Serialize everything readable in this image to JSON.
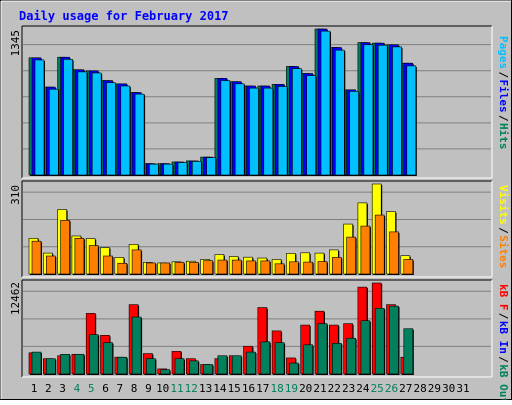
{
  "chart_data": {
    "type": "bar",
    "title": "Daily usage for February 2017",
    "categories": [
      "1",
      "2",
      "3",
      "4",
      "5",
      "6",
      "7",
      "8",
      "9",
      "10",
      "11",
      "12",
      "13",
      "14",
      "15",
      "16",
      "17",
      "18",
      "19",
      "20",
      "21",
      "22",
      "23",
      "24",
      "25",
      "26",
      "27",
      "28",
      "29",
      "30",
      "31"
    ],
    "weekend_days": [
      4,
      5,
      11,
      12,
      18,
      19,
      25,
      26
    ],
    "colors": {
      "background": "#c0c0c0",
      "frame": "#ffffff",
      "gridline": "#808080",
      "title": "#0000ff",
      "weekday": "#000000",
      "weekend": "#00805c",
      "hits": "#00805c",
      "files": "#0000ff",
      "pages": "#00c0ff",
      "visits": "#ffff00",
      "sites": "#ff8000",
      "kb_f": "#ff0000",
      "kb_in": "#0000ff",
      "kb_out": "#00805c"
    },
    "panels": [
      {
        "id": "hits",
        "ymax_label": "1345",
        "ylim": [
          0,
          1345
        ],
        "legend": [
          {
            "text": "Pages",
            "color": "#00c0ff"
          },
          {
            "text": "Files",
            "color": "#0000ff"
          },
          {
            "text": "Hits",
            "color": "#00805c"
          }
        ],
        "series": [
          {
            "name": "Hits",
            "color": "#00805c",
            "values": [
              1080,
              810,
              1085,
              970,
              960,
              870,
              840,
              760,
              105,
              105,
              120,
              130,
              165,
              890,
              860,
              820,
              820,
              835,
              1000,
              935,
              1345,
              1175,
              785,
              1220,
              1215,
              1200,
              1030,
              null,
              null,
              null,
              null
            ]
          },
          {
            "name": "Files",
            "color": "#0000ff",
            "values": [
              1080,
              810,
              1085,
              970,
              960,
              870,
              840,
              760,
              105,
              105,
              120,
              130,
              165,
              890,
              860,
              820,
              820,
              835,
              1000,
              935,
              1345,
              1175,
              785,
              1220,
              1215,
              1200,
              1030,
              null,
              null,
              null,
              null
            ]
          },
          {
            "name": "Pages",
            "color": "#00c0ff",
            "values": [
              1060,
              790,
              1065,
              950,
              940,
              850,
              820,
              745,
              100,
              100,
              115,
              125,
              160,
              870,
              840,
              800,
              800,
              815,
              980,
              915,
              1325,
              1150,
              770,
              1200,
              1195,
              1180,
              1005,
              null,
              null,
              null,
              null
            ]
          }
        ]
      },
      {
        "id": "visits",
        "ymax_label": "310",
        "ylim": [
          0,
          310
        ],
        "legend": [
          {
            "text": "Visits",
            "color": "#ffff00"
          },
          {
            "text": "Sites",
            "color": "#ff8000"
          }
        ],
        "series": [
          {
            "name": "Visits",
            "color": "#ffff00",
            "values": [
              123,
              72,
              222,
              131,
              122,
              91,
              57,
              102,
              40,
              38,
              42,
              44,
              50,
              67,
              60,
              58,
              55,
              50,
              71,
              73,
              72,
              83,
              172,
              245,
              310,
              215,
              63,
              null,
              null,
              null,
              null
            ]
          },
          {
            "name": "Sites",
            "color": "#ff8000",
            "values": [
              113,
              62,
              185,
              123,
              98,
              62,
              37,
              83,
              38,
              38,
              40,
              40,
              46,
              48,
              48,
              45,
              45,
              35,
              42,
              41,
              43,
              57,
              127,
              165,
              203,
              145,
              50,
              null,
              null,
              null,
              null
            ]
          }
        ]
      },
      {
        "id": "kbytes",
        "ymax_label": "12462",
        "ylim": [
          0,
          12462
        ],
        "legend": [
          {
            "text": "kB F",
            "color": "#ff0000"
          },
          {
            "text": "kB In",
            "color": "#0000ff"
          },
          {
            "text": "kB Out",
            "color": "#00805c"
          }
        ],
        "series": [
          {
            "name": "kB F",
            "color": "#ff0000",
            "values": [
              2900,
              2100,
              2500,
              2700,
              8300,
              5300,
              2300,
              9500,
              2800,
              700,
              3100,
              2100,
              1300,
              2100,
              2500,
              3800,
              9100,
              5900,
              2200,
              6700,
              8600,
              6700,
              6900,
              11900,
              12462,
              9500,
              2300,
              null,
              null,
              null,
              null
            ]
          },
          {
            "name": "kB Out",
            "color": "#00805c",
            "values": [
              3000,
              2100,
              2700,
              2700,
              5400,
              4300,
              2300,
              7800,
              2100,
              600,
              2100,
              1800,
              1300,
              2500,
              2500,
              3000,
              4400,
              4300,
              1500,
              4000,
              6900,
              4200,
              4900,
              7300,
              9000,
              9300,
              6200,
              null,
              null,
              null,
              null
            ]
          }
        ]
      }
    ]
  }
}
